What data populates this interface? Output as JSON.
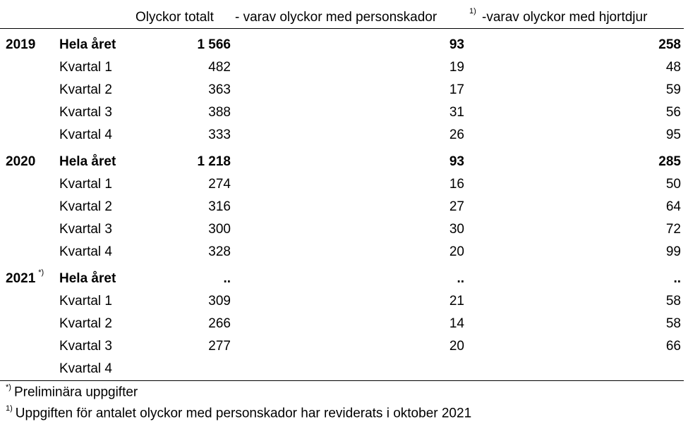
{
  "header": {
    "col_total": "Olyckor totalt",
    "col_injuries": "- varav olyckor med personskador",
    "col_injuries_note": "1)",
    "col_deer": "-varav olyckor med hjortdjur"
  },
  "rows": [
    {
      "year": "2019",
      "year_note": "",
      "period": "Hela året",
      "total": "1 566",
      "injuries": "93",
      "deer": "258",
      "bold": true
    },
    {
      "year": "",
      "year_note": "",
      "period": "Kvartal 1",
      "total": "482",
      "injuries": "19",
      "deer": "48",
      "bold": false
    },
    {
      "year": "",
      "year_note": "",
      "period": "Kvartal 2",
      "total": "363",
      "injuries": "17",
      "deer": "59",
      "bold": false
    },
    {
      "year": "",
      "year_note": "",
      "period": "Kvartal 3",
      "total": "388",
      "injuries": "31",
      "deer": "56",
      "bold": false
    },
    {
      "year": "",
      "year_note": "",
      "period": "Kvartal 4",
      "total": "333",
      "injuries": "26",
      "deer": "95",
      "bold": false
    },
    {
      "year": "2020",
      "year_note": "",
      "period": "Hela året",
      "total": "1 218",
      "injuries": "93",
      "deer": "285",
      "bold": true
    },
    {
      "year": "",
      "year_note": "",
      "period": "Kvartal 1",
      "total": "274",
      "injuries": "16",
      "deer": "50",
      "bold": false
    },
    {
      "year": "",
      "year_note": "",
      "period": "Kvartal 2",
      "total": "316",
      "injuries": "27",
      "deer": "64",
      "bold": false
    },
    {
      "year": "",
      "year_note": "",
      "period": "Kvartal 3",
      "total": "300",
      "injuries": "30",
      "deer": "72",
      "bold": false
    },
    {
      "year": "",
      "year_note": "",
      "period": "Kvartal 4",
      "total": "328",
      "injuries": "20",
      "deer": "99",
      "bold": false
    },
    {
      "year": "2021",
      "year_note": "*)",
      "period": "Hela året",
      "total": "..",
      "injuries": "..",
      "deer": "..",
      "bold": true
    },
    {
      "year": "",
      "year_note": "",
      "period": "Kvartal 1",
      "total": "309",
      "injuries": "21",
      "deer": "58",
      "bold": false
    },
    {
      "year": "",
      "year_note": "",
      "period": "Kvartal 2",
      "total": "266",
      "injuries": "14",
      "deer": "58",
      "bold": false
    },
    {
      "year": "",
      "year_note": "",
      "period": "Kvartal 3",
      "total": "277",
      "injuries": "20",
      "deer": "66",
      "bold": false
    },
    {
      "year": "",
      "year_note": "",
      "period": "Kvartal 4",
      "total": "",
      "injuries": "",
      "deer": "",
      "bold": false
    }
  ],
  "footnotes": {
    "prelim_mark": "*)",
    "prelim_text": "Preliminära uppgifter",
    "revised_mark": "1)",
    "revised_text": "Uppgiften för antalet olyckor med personskador har reviderats i oktober 2021"
  }
}
